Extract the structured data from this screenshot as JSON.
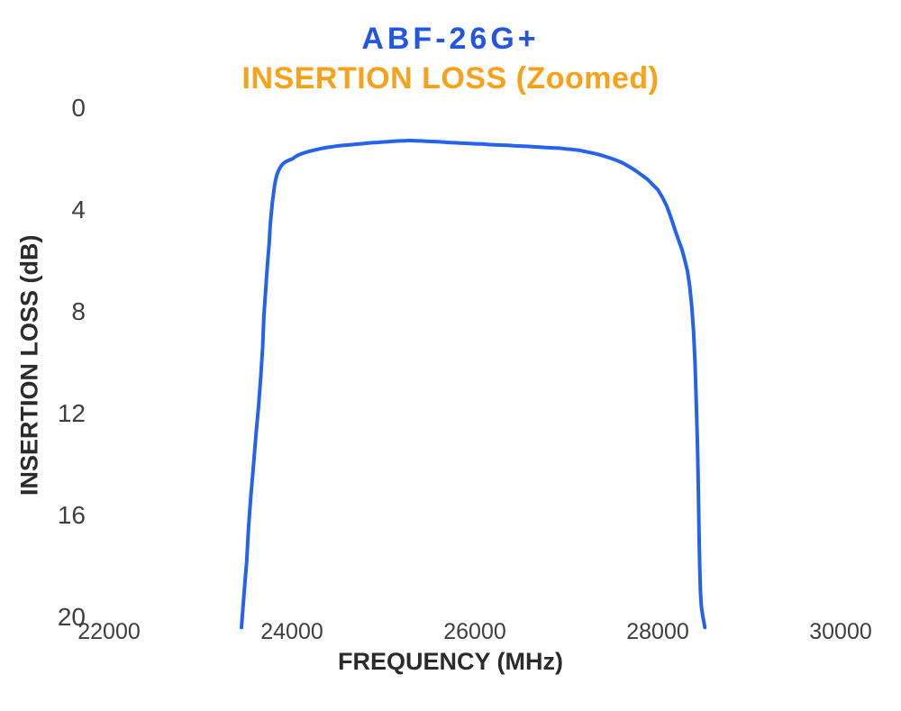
{
  "colors": {
    "title": "#2457E0",
    "subtitle": "#F7A21B",
    "axis_label": "#2B2B2B",
    "tick_label": "#3F3F3F",
    "curve": "#2563EB",
    "background": "#FFFFFF"
  },
  "chart_data": {
    "type": "line",
    "title": "ABF-26G+",
    "subtitle": "INSERTION LOSS (Zoomed)",
    "xlabel": "FREQUENCY (MHz)",
    "ylabel": "INSERTION LOSS (dB)",
    "xlim": [
      22000,
      30000
    ],
    "ylim": [
      0,
      20
    ],
    "y_axis_inverted": true,
    "grid": false,
    "legend_position": "none",
    "x_ticks": [
      22000,
      24000,
      26000,
      28000,
      30000
    ],
    "y_ticks": [
      0,
      4,
      8,
      12,
      16,
      20
    ],
    "series": [
      {
        "name": "Insertion Loss",
        "color": "#2563EB",
        "points": [
          [
            23448,
            20.4
          ],
          [
            23465,
            19.6
          ],
          [
            23485,
            18.7
          ],
          [
            23505,
            17.8
          ],
          [
            23525,
            16.5
          ],
          [
            23552,
            15.2
          ],
          [
            23580,
            14.0
          ],
          [
            23610,
            12.7
          ],
          [
            23635,
            11.7
          ],
          [
            23660,
            10.5
          ],
          [
            23680,
            9.4
          ],
          [
            23694,
            8.15
          ],
          [
            23710,
            7.3
          ],
          [
            23725,
            6.5
          ],
          [
            23740,
            5.8
          ],
          [
            23752,
            5.3
          ],
          [
            23763,
            4.6
          ],
          [
            23775,
            4.1
          ],
          [
            23786,
            3.7
          ],
          [
            23797,
            3.4
          ],
          [
            23808,
            3.1
          ],
          [
            23820,
            2.85
          ],
          [
            23835,
            2.62
          ],
          [
            23850,
            2.48
          ],
          [
            23868,
            2.35
          ],
          [
            23888,
            2.24
          ],
          [
            23910,
            2.16
          ],
          [
            23935,
            2.1
          ],
          [
            23965,
            2.05
          ],
          [
            24000,
            2.0
          ],
          [
            24030,
            1.93
          ],
          [
            24060,
            1.86
          ],
          [
            24100,
            1.8
          ],
          [
            24140,
            1.75
          ],
          [
            24185,
            1.7
          ],
          [
            24230,
            1.66
          ],
          [
            24280,
            1.62
          ],
          [
            24330,
            1.58
          ],
          [
            24390,
            1.54
          ],
          [
            24450,
            1.51
          ],
          [
            24510,
            1.48
          ],
          [
            24570,
            1.46
          ],
          [
            24630,
            1.44
          ],
          [
            24690,
            1.42
          ],
          [
            24750,
            1.4
          ],
          [
            24810,
            1.38
          ],
          [
            24870,
            1.36
          ],
          [
            24930,
            1.35
          ],
          [
            24990,
            1.33
          ],
          [
            25050,
            1.32
          ],
          [
            25110,
            1.3
          ],
          [
            25170,
            1.29
          ],
          [
            25230,
            1.28
          ],
          [
            25290,
            1.27
          ],
          [
            25350,
            1.28
          ],
          [
            25410,
            1.29
          ],
          [
            25470,
            1.3
          ],
          [
            25530,
            1.31
          ],
          [
            25590,
            1.32
          ],
          [
            25650,
            1.33
          ],
          [
            25710,
            1.35
          ],
          [
            25770,
            1.36
          ],
          [
            25830,
            1.37
          ],
          [
            25890,
            1.38
          ],
          [
            25950,
            1.39
          ],
          [
            26010,
            1.4
          ],
          [
            26080,
            1.41
          ],
          [
            26150,
            1.43
          ],
          [
            26220,
            1.44
          ],
          [
            26290,
            1.45
          ],
          [
            26360,
            1.46
          ],
          [
            26430,
            1.48
          ],
          [
            26500,
            1.49
          ],
          [
            26570,
            1.5
          ],
          [
            26640,
            1.52
          ],
          [
            26710,
            1.53
          ],
          [
            26780,
            1.55
          ],
          [
            26850,
            1.56
          ],
          [
            26920,
            1.57
          ],
          [
            26990,
            1.6
          ],
          [
            27060,
            1.62
          ],
          [
            27130,
            1.65
          ],
          [
            27200,
            1.7
          ],
          [
            27270,
            1.75
          ],
          [
            27340,
            1.81
          ],
          [
            27410,
            1.88
          ],
          [
            27480,
            1.96
          ],
          [
            27550,
            2.05
          ],
          [
            27620,
            2.16
          ],
          [
            27690,
            2.3
          ],
          [
            27760,
            2.46
          ],
          [
            27830,
            2.64
          ],
          [
            27890,
            2.8
          ],
          [
            27945,
            3.0
          ],
          [
            28000,
            3.2
          ],
          [
            28050,
            3.5
          ],
          [
            28100,
            3.85
          ],
          [
            28145,
            4.3
          ],
          [
            28190,
            4.8
          ],
          [
            28230,
            5.2
          ],
          [
            28265,
            5.55
          ],
          [
            28295,
            5.95
          ],
          [
            28325,
            6.4
          ],
          [
            28350,
            7.0
          ],
          [
            28372,
            7.8
          ],
          [
            28392,
            8.8
          ],
          [
            28408,
            10.0
          ],
          [
            28422,
            11.6
          ],
          [
            28434,
            13.2
          ],
          [
            28444,
            15.0
          ],
          [
            28452,
            16.8
          ],
          [
            28459,
            18.0
          ],
          [
            28467,
            19.0
          ],
          [
            28478,
            19.6
          ],
          [
            28495,
            20.0
          ],
          [
            28515,
            20.4
          ]
        ]
      }
    ]
  }
}
